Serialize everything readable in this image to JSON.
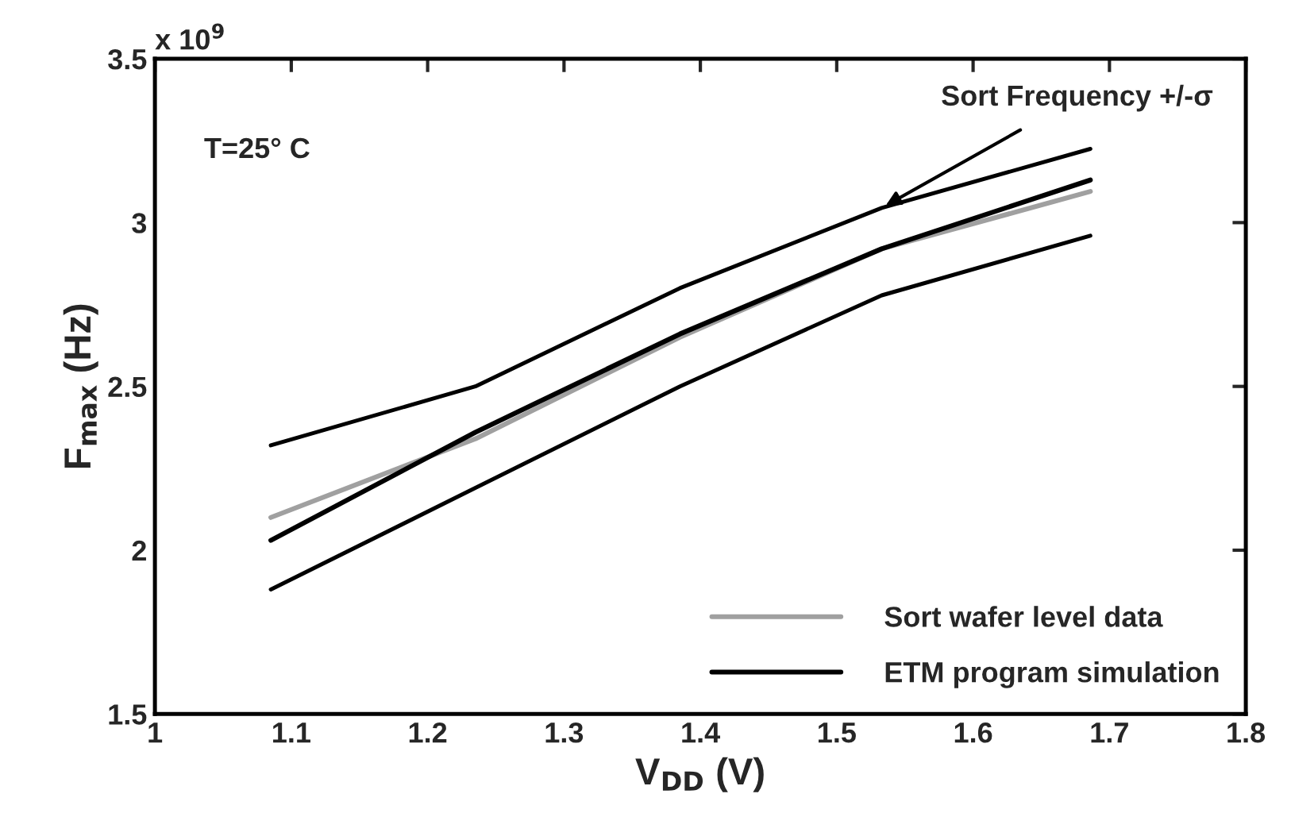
{
  "chart_data": {
    "type": "line",
    "xlabel": "V$_{DD}$ (V)",
    "ylabel": "F$_{max}$ (Hz)",
    "xlim": [
      1,
      1.8
    ],
    "xticks": [
      1,
      1.1,
      1.2,
      1.3,
      1.4,
      1.5,
      1.6,
      1.7,
      1.8
    ],
    "ylim": [
      1.5,
      3.5
    ],
    "yticks": [
      1.5,
      2,
      2.5,
      3,
      3.5
    ],
    "grid": false,
    "legend": "bottom right",
    "marker": "none",
    "line_style": "solid",
    "x": [
      1.085,
      1.235,
      1.385,
      1.533,
      1.686
    ],
    "series": [
      {
        "name": "Sort wafer level data",
        "color": "#a0a0a0",
        "values": [
          2.1,
          2.34,
          2.65,
          2.92,
          3.095
        ]
      },
      {
        "name": "ETM program simulation",
        "color": "#000000",
        "values": [
          2.03,
          2.36,
          2.66,
          2.92,
          3.13
        ]
      },
      {
        "color": "#000000",
        "values": [
          2.32,
          2.5,
          2.8,
          3.045,
          3.225
        ]
      },
      {
        "color": "#000000",
        "values": [
          1.88,
          2.19,
          2.5,
          2.778,
          2.96
        ]
      }
    ],
    "annotations": [
      "x 10$^{9}$",
      "T=25° C",
      {
        "text": "Sort Frequency +/-σ",
        "x": 1.533,
        "y": 3.045
      }
    ]
  }
}
